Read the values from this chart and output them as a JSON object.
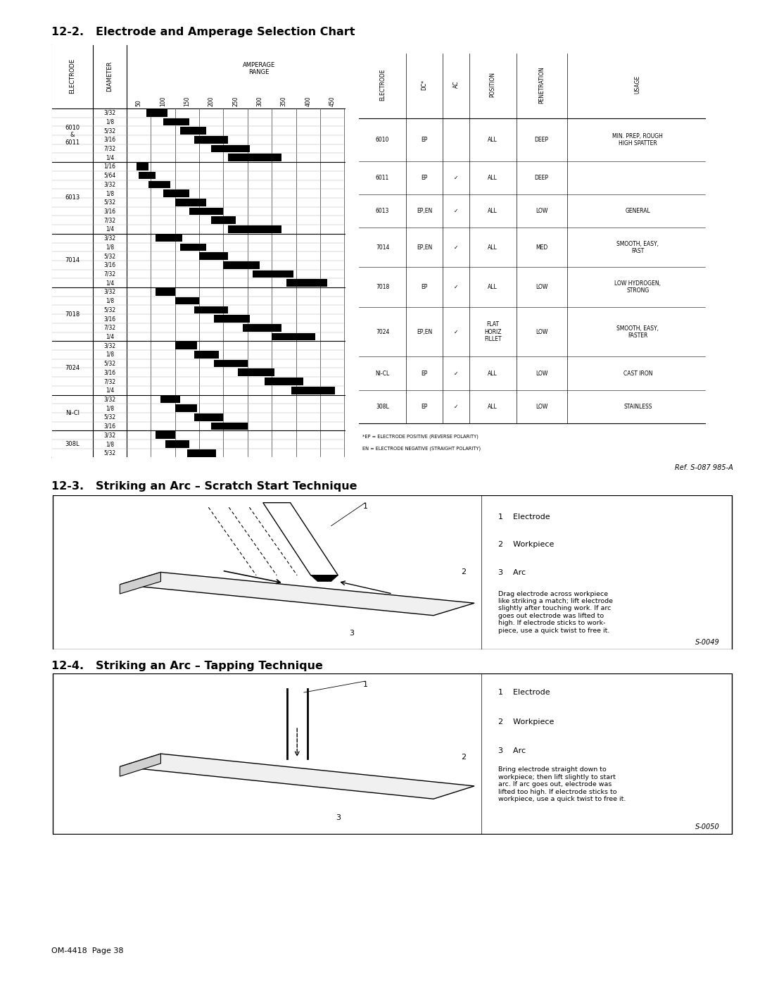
{
  "page_title_1": "12-2.   Electrode and Amperage Selection Chart",
  "page_title_2": "12-3.   Striking an Arc – Scratch Start Technique",
  "page_title_3": "12-4.   Striking an Arc – Tapping Technique",
  "footer_left": "OM-4418  Page 38",
  "ref_text": "Ref. S-087 985-A",
  "s0049": "S-0049",
  "s0050": "S-0050",
  "amperage_ticks": [
    50,
    100,
    150,
    200,
    250,
    300,
    350,
    400,
    450
  ],
  "electrodes": [
    {
      "name": "6010\n&\n6011",
      "diameters": [
        "3/32",
        "1/8",
        "5/32",
        "3/16",
        "7/32",
        "1/4"
      ],
      "ranges": [
        [
          40,
          85
        ],
        [
          75,
          130
        ],
        [
          110,
          165
        ],
        [
          140,
          210
        ],
        [
          175,
          255
        ],
        [
          210,
          320
        ]
      ]
    },
    {
      "name": "6013",
      "diameters": [
        "1/16",
        "5/64",
        "3/32",
        "1/8",
        "5/32",
        "3/16",
        "7/32",
        "1/4"
      ],
      "ranges": [
        [
          20,
          45
        ],
        [
          25,
          60
        ],
        [
          45,
          90
        ],
        [
          75,
          130
        ],
        [
          100,
          165
        ],
        [
          130,
          200
        ],
        [
          175,
          225
        ],
        [
          210,
          320
        ]
      ]
    },
    {
      "name": "7014",
      "diameters": [
        "3/32",
        "1/8",
        "5/32",
        "3/16",
        "7/32",
        "1/4"
      ],
      "ranges": [
        [
          60,
          115
        ],
        [
          110,
          165
        ],
        [
          150,
          210
        ],
        [
          200,
          275
        ],
        [
          260,
          345
        ],
        [
          330,
          415
        ]
      ]
    },
    {
      "name": "7018",
      "diameters": [
        "3/32",
        "1/8",
        "5/32",
        "3/16",
        "7/32",
        "1/4"
      ],
      "ranges": [
        [
          60,
          100
        ],
        [
          100,
          150
        ],
        [
          140,
          210
        ],
        [
          180,
          255
        ],
        [
          240,
          320
        ],
        [
          300,
          390
        ]
      ]
    },
    {
      "name": "7024",
      "diameters": [
        "3/32",
        "1/8",
        "5/32",
        "3/16",
        "7/32",
        "1/4"
      ],
      "ranges": [
        [
          100,
          145
        ],
        [
          140,
          190
        ],
        [
          180,
          250
        ],
        [
          230,
          305
        ],
        [
          285,
          365
        ],
        [
          340,
          430
        ]
      ]
    },
    {
      "name": "Ni-Cl",
      "diameters": [
        "3/32",
        "1/8",
        "5/32",
        "3/16"
      ],
      "ranges": [
        [
          70,
          110
        ],
        [
          100,
          145
        ],
        [
          140,
          200
        ],
        [
          175,
          250
        ]
      ]
    },
    {
      "name": "308L",
      "diameters": [
        "3/32",
        "1/8",
        "5/32"
      ],
      "ranges": [
        [
          60,
          100
        ],
        [
          80,
          130
        ],
        [
          125,
          185
        ]
      ]
    }
  ],
  "table2_rows": [
    [
      "6010",
      "EP",
      "",
      "ALL",
      "DEEP",
      "MIN. PREP, ROUGH\nHIGH SPATTER"
    ],
    [
      "6011",
      "EP",
      "✓",
      "ALL",
      "DEEP",
      ""
    ],
    [
      "6013",
      "EP,EN",
      "✓",
      "ALL",
      "LOW",
      "GENERAL"
    ],
    [
      "7014",
      "EP,EN",
      "✓",
      "ALL",
      "MED",
      "SMOOTH, EASY,\nFAST"
    ],
    [
      "7018",
      "EP",
      "✓",
      "ALL",
      "LOW",
      "LOW HYDROGEN,\nSTRONG"
    ],
    [
      "7024",
      "EP,EN",
      "✓",
      "FLAT\nHORIZ\nFILLET",
      "LOW",
      "SMOOTH, EASY,\nFASTER"
    ],
    [
      "NI-CL",
      "EP",
      "✓",
      "ALL",
      "LOW",
      "CAST IRON"
    ],
    [
      "308L",
      "EP",
      "✓",
      "ALL",
      "LOW",
      "STAINLESS"
    ]
  ],
  "table2_footnote1": "*EP = ELECTRODE POSITIVE (REVERSE POLARITY)",
  "table2_footnote2": "EN = ELECTRODE NEGATIVE (STRAIGHT POLARITY)",
  "scratch_legend": [
    "1    Electrode",
    "2    Workpiece",
    "3    Arc"
  ],
  "scratch_desc": "Drag electrode across workpiece\nlike striking a match; lift electrode\nslightly after touching work. If arc\ngoes out electrode was lifted to\nhigh. If electrode sticks to work-\npiece, use a quick twist to free it.",
  "tapping_legend": [
    "1    Electrode",
    "2    Workpiece",
    "3    Arc"
  ],
  "tapping_desc": "Bring electrode straight down to\nworkpiece; then lift slightly to start\narc. If arc goes out, electrode was\nlifted too high. If electrode sticks to\nworkpiece, use a quick twist to free it.",
  "bg_color": "#ffffff"
}
